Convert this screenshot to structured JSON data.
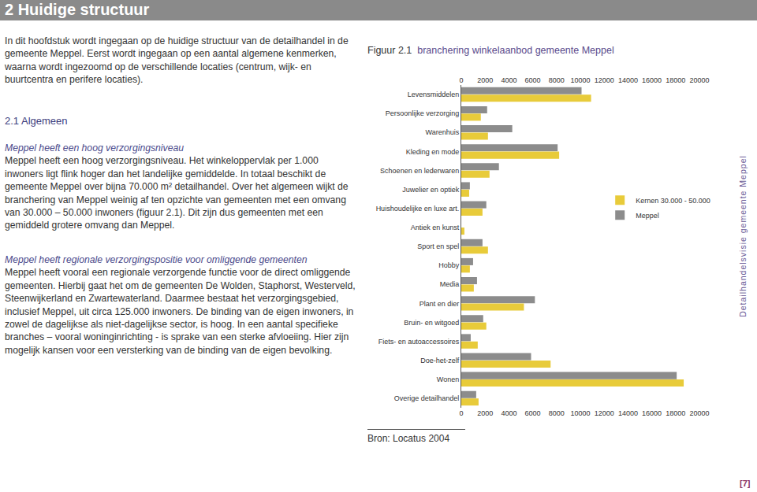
{
  "page": {
    "section_title": "2 Huidige structuur",
    "intro": "In dit hoofdstuk wordt ingegaan op de huidige structuur van de detailhandel in de gemeente Meppel. Eerst wordt ingegaan op een aantal algemene kenmerken, waarna wordt ingezoomd op de verschillende locaties (centrum, wijk- en buurtcentra en perifere locaties).",
    "section_heading": "2.1 Algemeen",
    "subsections": [
      {
        "heading": "Meppel heeft een hoog verzorgingsniveau",
        "text": "Meppel heeft een hoog verzorgingsniveau. Het winkeloppervlak per 1.000 inwoners ligt flink hoger dan het landelijke gemiddelde. In totaal beschikt de gemeente Meppel over bijna 70.000 m² detailhandel. Over het algemeen wijkt de branchering van Meppel weinig af ten opzichte van gemeenten met een omvang van 30.000 – 50.000 inwoners (figuur 2.1). Dit zijn dus gemeenten met een gemiddeld grotere omvang dan Meppel."
      },
      {
        "heading": "Meppel heeft regionale verzorgingspositie voor omliggende gemeenten",
        "text": "Meppel heeft vooral een regionale verzorgende functie voor de direct omliggende gemeenten. Hierbij gaat het om de gemeenten De Wolden, Staphorst, Westerveld, Steenwijkerland en Zwartewaterland. Daarmee bestaat het verzorgingsgebied, inclusief Meppel, uit circa 125.000 inwoners. De binding van de eigen inwoners, in zowel de dagelijkse als niet-dagelijkse sector, is hoog. In een aantal specifieke branches – vooral woninginrichting - is sprake van een sterke afvloeiing. Hier zijn mogelijk kansen voor een versterking van de binding van de eigen bevolking."
      }
    ],
    "side_text": "Detailhandelsvisie gemeente Meppel",
    "page_number": "[7]"
  },
  "figure": {
    "label": "Figuur 2.1",
    "title": "branchering winkelaanbod gemeente Meppel",
    "source": "Bron: Locatus 2004"
  },
  "chart_data": {
    "type": "bar",
    "orientation": "horizontal",
    "categories": [
      "Levensmiddelen",
      "Persoonlijke verzorging",
      "Warenhuis",
      "Kleding en mode",
      "Schoenen en lederwaren",
      "Juwelier en optiek",
      "Huishoudelijke en luxe art.",
      "Antiek en kunst",
      "Sport en spel",
      "Hobby",
      "Media",
      "Plant en dier",
      "Bruin- en witgoed",
      "Fiets- en autoaccessoires",
      "Doe-het-zelf",
      "Wonen",
      "Overige detailhandel"
    ],
    "series": [
      {
        "name": "Meppel",
        "color": "#8c8c8c",
        "values": [
          10100,
          2170,
          4280,
          8090,
          3160,
          720,
          2100,
          0,
          1780,
          990,
          1320,
          6180,
          1840,
          790,
          5860,
          18090,
          1250
        ]
      },
      {
        "name": "Kernen 30.000 - 50.000",
        "color": "#e8cb3a",
        "values": [
          10900,
          1640,
          2240,
          8220,
          2370,
          660,
          1780,
          260,
          2240,
          720,
          1050,
          5260,
          2100,
          1380,
          7500,
          18680,
          1450
        ]
      }
    ],
    "xlim": [
      0,
      20000
    ],
    "xticks": [
      0,
      2000,
      4000,
      6000,
      8000,
      10000,
      12000,
      14000,
      16000,
      18000,
      20000
    ],
    "grid": false,
    "legend": "right"
  }
}
